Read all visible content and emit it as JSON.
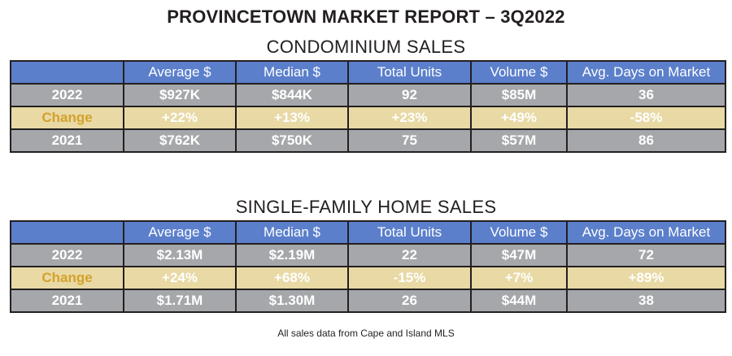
{
  "title": "PROVINCETOWN MARKET REPORT – 3Q2022",
  "columns": [
    "Average $",
    "Median $",
    "Total Units",
    "Volume $",
    "Avg. Days on Market"
  ],
  "condo": {
    "heading": "CONDOMINIUM SALES",
    "rows": [
      {
        "label": "2022",
        "cells": [
          "$927K",
          "$844K",
          "92",
          "$85M",
          "36"
        ]
      },
      {
        "label": "Change",
        "cells": [
          "+22%",
          "+13%",
          "+23%",
          "+49%",
          "-58%"
        ]
      },
      {
        "label": "2021",
        "cells": [
          "$762K",
          "$750K",
          "75",
          "$57M",
          "86"
        ]
      }
    ]
  },
  "single_family": {
    "heading": "SINGLE-FAMILY HOME SALES",
    "rows": [
      {
        "label": "2022",
        "cells": [
          "$2.13M",
          "$2.19M",
          "22",
          "$47M",
          "72"
        ]
      },
      {
        "label": "Change",
        "cells": [
          "+24%",
          "+68%",
          "-15%",
          "+7%",
          "+89%"
        ]
      },
      {
        "label": "2021",
        "cells": [
          "$1.71M",
          "$1.30M",
          "26",
          "$44M",
          "38"
        ]
      }
    ]
  },
  "footnote": "All sales data from Cape and Island MLS",
  "colors": {
    "header_blue": "#5b7fcb",
    "row_grey": "#a5a7aa",
    "change_tan": "#e8d9a5",
    "change_label_gold": "#d4a22a"
  }
}
